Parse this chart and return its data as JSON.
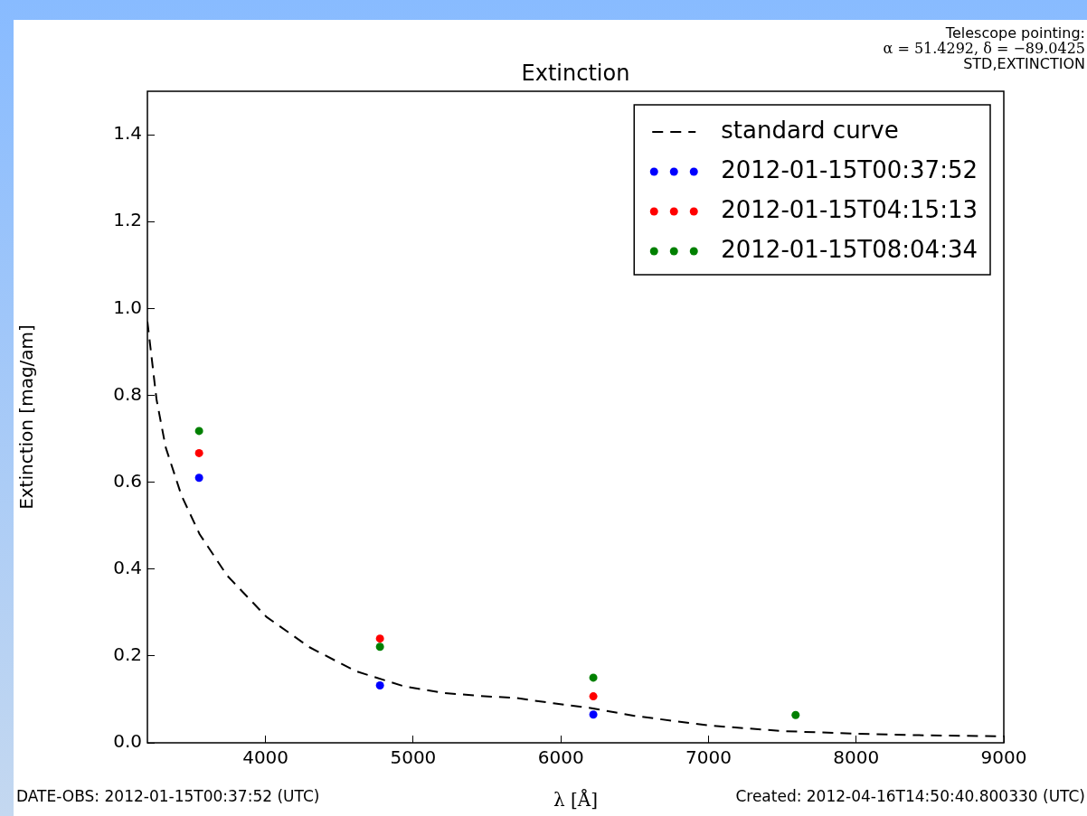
{
  "chart_data": {
    "type": "scatter",
    "title": "Extinction",
    "xlabel": "λ [Å]",
    "ylabel": "Extinction [mag/am]",
    "xlim": [
      3200,
      9000
    ],
    "xticks": [
      4000,
      5000,
      6000,
      7000,
      8000,
      9000
    ],
    "ylim": [
      0,
      1.5
    ],
    "yticks": [
      {
        "value": 0,
        "label": "0.0"
      },
      0.2,
      0.4,
      0.6,
      0.8,
      {
        "value": 1,
        "label": "1.0"
      },
      1.2,
      1.4
    ],
    "legend": "top right",
    "marker": "circle",
    "grid": false,
    "series": [
      {
        "name": "standard curve",
        "type": "line",
        "line_style": "dashed",
        "marker": "none",
        "color": "#000000",
        "x": [
          3200,
          3262,
          3324,
          3430,
          3554,
          3740,
          4006,
          4298,
          4610,
          4938,
          5200,
          5450,
          5700,
          5950,
          6200,
          6500,
          7000,
          7500,
          8000,
          8500,
          9000
        ],
        "values": [
          0.97,
          0.79,
          0.68,
          0.57,
          0.48,
          0.385,
          0.29,
          0.22,
          0.165,
          0.13,
          0.115,
          0.108,
          0.103,
          0.091,
          0.08,
          0.062,
          0.04,
          0.027,
          0.021,
          0.017,
          0.015
        ]
      },
      {
        "name": "2012-01-15T00:37:52",
        "color": "#0000ff",
        "x": [
          3550,
          4775,
          6220
        ],
        "values": [
          0.61,
          0.132,
          0.065
        ]
      },
      {
        "name": "2012-01-15T04:15:13",
        "color": "#ff0000",
        "x": [
          3550,
          4775,
          6220
        ],
        "values": [
          0.667,
          0.24,
          0.107
        ]
      },
      {
        "name": "2012-01-15T08:04:34",
        "color": "#008000",
        "x": [
          3550,
          4775,
          6220,
          7590
        ],
        "values": [
          0.718,
          0.221,
          0.15,
          0.064
        ]
      }
    ],
    "annotations": [
      "Telescope pointing:",
      "α = 51.4292, δ = −89.0425",
      "STD,EXTINCTION",
      "DATE-OBS: 2012-01-15T00:37:52 (UTC)",
      "Created: 2012-04-16T14:50:40.800330 (UTC)"
    ]
  }
}
